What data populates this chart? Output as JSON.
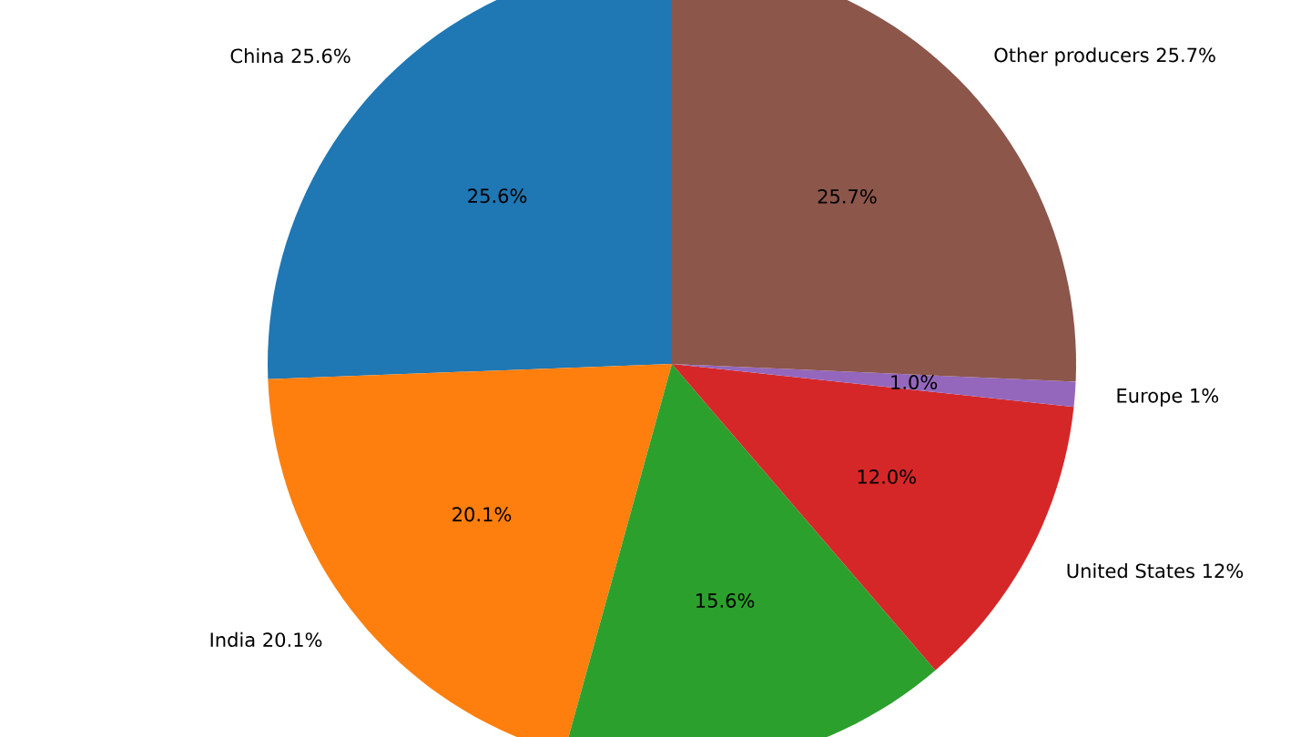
{
  "chart_data": {
    "type": "pie",
    "categories": [
      "China 25.6%",
      "India 20.1%",
      null,
      "United States 12%",
      "Europe 1%",
      "Other producers 25.7%"
    ],
    "values": [
      25.6,
      20.1,
      15.6,
      12,
      1,
      25.7
    ],
    "value_labels": [
      "25.6%",
      "20.1%",
      "15.6%",
      "12.0%",
      "1.0%",
      "25.7%"
    ],
    "colors": [
      "#1f77b4",
      "#ff7f0e",
      "#2ca02c",
      "#d62728",
      "#9467bd",
      "#8c564b"
    ]
  }
}
